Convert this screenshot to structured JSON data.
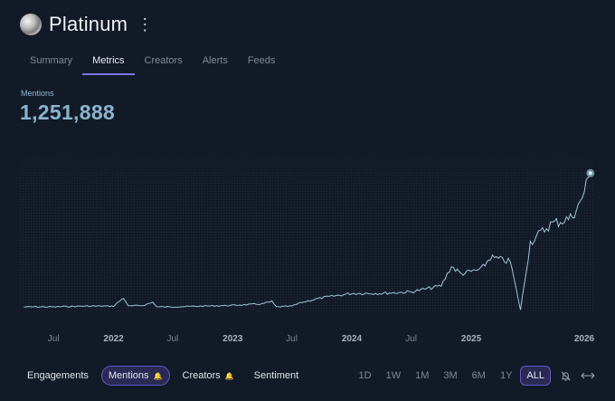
{
  "header": {
    "title": "Platinum",
    "menu_icon": "kebab-icon"
  },
  "tabs": [
    "Summary",
    "Metrics",
    "Creators",
    "Alerts",
    "Feeds"
  ],
  "active_tab": "Metrics",
  "metric": {
    "label": "Mentions",
    "value": "1,251,888"
  },
  "chart_data": {
    "type": "line",
    "x_tick_labels": [
      "Jul",
      "2022",
      "Jul",
      "2023",
      "Jul",
      "2024",
      "Jul",
      "2025",
      "2026"
    ],
    "series": [
      {
        "values": [
          {
            "x": "2021-04",
            "y": 0.03
          },
          {
            "x": "2021-07",
            "y": 0.03
          },
          {
            "x": "2021-10",
            "y": 0.035
          },
          {
            "x": "2022-01",
            "y": 0.035
          },
          {
            "x": "2022-02",
            "y": 0.09
          },
          {
            "x": "2022-02-15",
            "y": 0.035
          },
          {
            "x": "2022-04",
            "y": 0.04
          },
          {
            "x": "2022-05",
            "y": 0.06
          },
          {
            "x": "2022-05-15",
            "y": 0.03
          },
          {
            "x": "2022-07",
            "y": 0.03
          },
          {
            "x": "2022-10",
            "y": 0.035
          },
          {
            "x": "2023-01",
            "y": 0.04
          },
          {
            "x": "2023-04",
            "y": 0.05
          },
          {
            "x": "2023-05",
            "y": 0.065
          },
          {
            "x": "2023-05-15",
            "y": 0.03
          },
          {
            "x": "2023-07",
            "y": 0.035
          },
          {
            "x": "2023-08",
            "y": 0.06
          },
          {
            "x": "2023-10",
            "y": 0.09
          },
          {
            "x": "2024-01",
            "y": 0.12
          },
          {
            "x": "2024-04",
            "y": 0.12
          },
          {
            "x": "2024-07",
            "y": 0.13
          },
          {
            "x": "2024-10",
            "y": 0.17
          },
          {
            "x": "2024-11",
            "y": 0.3
          },
          {
            "x": "2024-12",
            "y": 0.25
          },
          {
            "x": "2025-02",
            "y": 0.28
          },
          {
            "x": "2025-03",
            "y": 0.36
          },
          {
            "x": "2025-05",
            "y": 0.33
          },
          {
            "x": "2025-06",
            "y": 0.01
          },
          {
            "x": "2025-07",
            "y": 0.46
          },
          {
            "x": "2025-09",
            "y": 0.58
          },
          {
            "x": "2025-11",
            "y": 0.62
          },
          {
            "x": "2025-12",
            "y": 0.72
          },
          {
            "x": "2026-01",
            "y": 0.92
          }
        ]
      }
    ],
    "colors": {
      "line": "#9fc5d8",
      "dot": "#6e8f9b",
      "background": "#131a27"
    }
  },
  "bottom_metrics": [
    {
      "label": "Engagements",
      "bell": false
    },
    {
      "label": "Mentions",
      "bell": true
    },
    {
      "label": "Creators",
      "bell": true
    },
    {
      "label": "Sentiment",
      "bell": false
    }
  ],
  "active_metric": "Mentions",
  "ranges": [
    "1D",
    "1W",
    "1M",
    "3M",
    "6M",
    "1Y",
    "ALL"
  ],
  "active_range": "ALL",
  "icons": {
    "alert": "bell-off-icon",
    "expand": "expand-arrows-icon"
  }
}
